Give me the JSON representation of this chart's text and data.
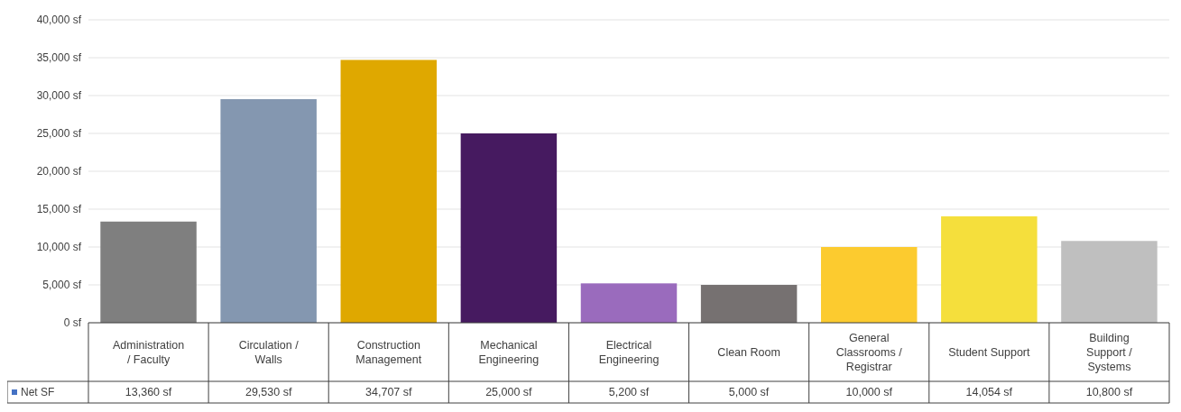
{
  "chart_data": {
    "type": "bar",
    "categories": [
      "Administration / Faculty",
      "Circulation / Walls",
      "Construction Management",
      "Mechanical Engineering",
      "Electrical Engineering",
      "Clean Room",
      "General Classrooms / Registrar",
      "Student Support",
      "Building Support / Systems"
    ],
    "series": [
      {
        "name": "Net SF",
        "color": "#4472c4",
        "colors": [
          "#7f7f7f",
          "#8497b0",
          "#dfa800",
          "#461a60",
          "#9a6bbd",
          "#767171",
          "#fccb2f",
          "#f5df3c",
          "#bfbfbf"
        ],
        "values": [
          13360,
          29530,
          34707,
          25000,
          5200,
          5000,
          10000,
          14054,
          10800
        ],
        "value_labels": [
          "13,360 sf",
          "29,530 sf",
          "34,707 sf",
          "25,000 sf",
          "5,200 sf",
          "5,000 sf",
          "10,000 sf",
          "14,054 sf",
          "10,800 sf"
        ]
      }
    ],
    "ylim": [
      0,
      40000
    ],
    "yticks": [
      {
        "value": 0,
        "label": "0 sf"
      },
      {
        "value": 5000,
        "label": "5,000 sf"
      },
      {
        "value": 10000,
        "label": "10,000 sf"
      },
      {
        "value": 15000,
        "label": "15,000 sf"
      },
      {
        "value": 20000,
        "label": "20,000 sf"
      },
      {
        "value": 25000,
        "label": "25,000 sf"
      },
      {
        "value": 30000,
        "label": "30,000 sf"
      },
      {
        "value": 35000,
        "label": "35,000 sf"
      },
      {
        "value": 40000,
        "label": "40,000 sf"
      }
    ],
    "grid": "y",
    "legend": "bottom left"
  }
}
